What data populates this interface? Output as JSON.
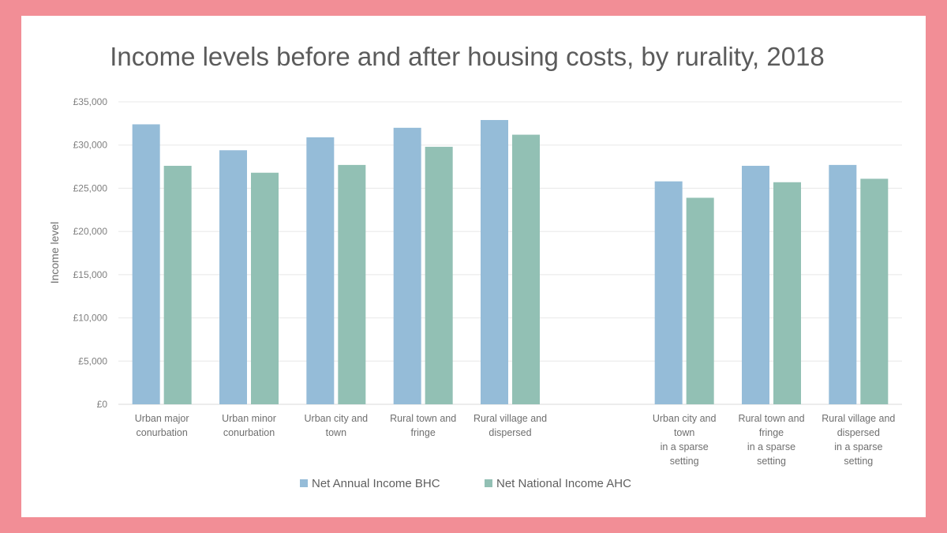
{
  "chart_data": {
    "type": "bar",
    "title": "Income levels before and after housing costs, by rurality, 2018",
    "xlabel": "",
    "ylabel": "Income level",
    "ylim": [
      0,
      35000
    ],
    "yticks": [
      {
        "value": 0,
        "label": "£0"
      },
      {
        "value": 5000,
        "label": "£5,000"
      },
      {
        "value": 10000,
        "label": "£10,000"
      },
      {
        "value": 15000,
        "label": "£15,000"
      },
      {
        "value": 20000,
        "label": "£20,000"
      },
      {
        "value": 25000,
        "label": "£25,000"
      },
      {
        "value": 30000,
        "label": "£30,000"
      },
      {
        "value": 35000,
        "label": "£35,000"
      }
    ],
    "grid": true,
    "legend_position": "bottom",
    "categories": [
      {
        "lines": [
          "Urban major",
          "conurbation"
        ]
      },
      {
        "lines": [
          "Urban minor",
          "conurbation"
        ]
      },
      {
        "lines": [
          "Urban city and",
          "town"
        ]
      },
      {
        "lines": [
          "Rural town and",
          "fringe"
        ]
      },
      {
        "lines": [
          "Rural village and",
          "dispersed"
        ]
      },
      {
        "lines": []
      },
      {
        "lines": [
          "Urban city and",
          "town",
          "in a sparse",
          "setting"
        ]
      },
      {
        "lines": [
          "Rural town and",
          "fringe",
          "in a sparse",
          "setting"
        ]
      },
      {
        "lines": [
          "Rural village and",
          "dispersed",
          "in a sparse",
          "setting"
        ]
      }
    ],
    "series": [
      {
        "name": "Net Annual Income BHC",
        "color": "#95bcd8",
        "values": [
          32400,
          29400,
          30900,
          32000,
          32900,
          null,
          25800,
          27600,
          27700
        ]
      },
      {
        "name": "Net National Income AHC",
        "color": "#92c0b4",
        "values": [
          27600,
          26800,
          27700,
          29800,
          31200,
          null,
          23900,
          25700,
          26100
        ]
      }
    ]
  },
  "colors": {
    "frame": "#f28e96",
    "card": "#ffffff",
    "grid": "#e8e8e8",
    "axis": "#d9d9d9"
  }
}
